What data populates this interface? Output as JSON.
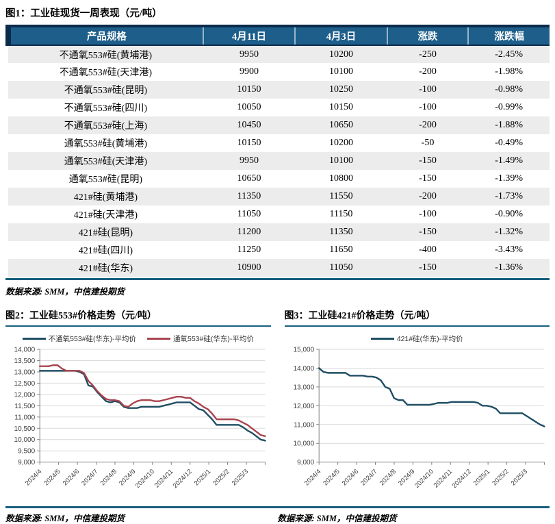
{
  "fig1": {
    "title": "图1：工业硅现货一周表现（元/吨）",
    "table": {
      "headers": [
        "产品规格",
        "4月11日",
        "4月3日",
        "涨跌",
        "涨跌幅"
      ],
      "rows": [
        [
          "不通氧553#硅(黄埔港)",
          "9950",
          "10200",
          "-250",
          "-2.45%"
        ],
        [
          "不通氧553#硅(天津港)",
          "9900",
          "10100",
          "-200",
          "-1.98%"
        ],
        [
          "不通氧553#硅(昆明)",
          "10150",
          "10250",
          "-100",
          "-0.98%"
        ],
        [
          "不通氧553#硅(四川)",
          "10050",
          "10150",
          "-100",
          "-0.99%"
        ],
        [
          "不通氧553#硅(上海)",
          "10450",
          "10650",
          "-200",
          "-1.88%"
        ],
        [
          "通氧553#硅(黄埔港)",
          "10150",
          "10200",
          "-50",
          "-0.49%"
        ],
        [
          "通氧553#硅(天津港)",
          "9950",
          "10100",
          "-150",
          "-1.49%"
        ],
        [
          "通氧553#硅(昆明)",
          "10650",
          "10800",
          "-150",
          "-1.39%"
        ],
        [
          "421#硅(黄埔港)",
          "11350",
          "11550",
          "-200",
          "-1.73%"
        ],
        [
          "421#硅(天津港)",
          "11050",
          "11150",
          "-100",
          "-0.90%"
        ],
        [
          "421#硅(昆明)",
          "11200",
          "11350",
          "-150",
          "-1.32%"
        ],
        [
          "421#硅(四川)",
          "11250",
          "11650",
          "-400",
          "-3.43%"
        ],
        [
          "421#硅(华东)",
          "10900",
          "11050",
          "-150",
          "-1.36%"
        ]
      ]
    },
    "source": "数据来源: SMM，中信建投期货"
  },
  "fig2": {
    "title": "图2：工业硅553#价格走势（元/吨）",
    "source": "数据来源: SMM，中信建投期货"
  },
  "fig3": {
    "title": "图3：工业硅421#价格走势（元/吨）",
    "source": "数据来源: SMM，中信建投期货"
  },
  "colors": {
    "table_header_bg": "#1D5E8A",
    "table_header_border": "#0B2B4A",
    "row_alt": "#ECECEC",
    "rule_teal": "#175E7E",
    "line_blue": "#1F4E63",
    "line_red": "#A8444F",
    "grid": "#D9D9D9",
    "axis": "#808080"
  },
  "chart_data": [
    {
      "type": "line",
      "title": "图2：工业硅553#价格走势（元/吨）",
      "ylabel": "",
      "xlabel": "",
      "ylim": [
        9000,
        14000
      ],
      "yticks": [
        9000,
        9500,
        10000,
        10500,
        11000,
        11500,
        12000,
        12500,
        13000,
        13500,
        14000
      ],
      "x_tick_labels": [
        "2024/4",
        "2024/5",
        "2024/6",
        "2024/7",
        "2024/8",
        "2024/9",
        "2024/10",
        "2024/11",
        "2024/12",
        "2025/1",
        "2025/2",
        "2025/3"
      ],
      "grid": true,
      "legend_position": "top",
      "series": [
        {
          "name": "不通氧553#硅(华东)-平均价",
          "color": "#1F4E63",
          "values": [
            13050,
            13050,
            13050,
            13050,
            13050,
            13050,
            13050,
            13050,
            13050,
            13000,
            12900,
            12400,
            12350,
            12100,
            11900,
            11700,
            11650,
            11700,
            11650,
            11450,
            11400,
            11400,
            11400,
            11450,
            11450,
            11450,
            11450,
            11450,
            11500,
            11550,
            11600,
            11650,
            11650,
            11650,
            11650,
            11500,
            11350,
            11300,
            11100,
            10900,
            10650,
            10650,
            10650,
            10650,
            10650,
            10650,
            10550,
            10400,
            10300,
            10150,
            10000,
            9950
          ]
        },
        {
          "name": "通氧553#硅(华东)-平均价",
          "color": "#A8444F",
          "values": [
            13250,
            13250,
            13250,
            13300,
            13300,
            13150,
            13050,
            13050,
            13050,
            13050,
            12950,
            12600,
            12400,
            12150,
            11950,
            11800,
            11750,
            11750,
            11700,
            11500,
            11450,
            11600,
            11700,
            11750,
            11750,
            11750,
            11700,
            11700,
            11750,
            11800,
            11850,
            11900,
            11900,
            11850,
            11850,
            11700,
            11600,
            11450,
            11350,
            11150,
            10900,
            10900,
            10900,
            10900,
            10900,
            10850,
            10750,
            10650,
            10500,
            10350,
            10200,
            10150
          ]
        }
      ]
    },
    {
      "type": "line",
      "title": "图3：工业硅421#价格走势（元/吨）",
      "ylabel": "",
      "xlabel": "",
      "ylim": [
        9000,
        15000
      ],
      "yticks": [
        9000,
        10000,
        11000,
        12000,
        13000,
        14000,
        15000
      ],
      "x_tick_labels": [
        "2024/4",
        "2024/5",
        "2024/6",
        "2024/7",
        "2024/8",
        "2024/9",
        "2024/10",
        "2024/11",
        "2024/12",
        "2025/1",
        "2025/2",
        "2025/3"
      ],
      "grid": true,
      "legend_position": "top",
      "series": [
        {
          "name": "421#硅(华东)-平均价",
          "color": "#1F4E63",
          "values": [
            14000,
            13800,
            13750,
            13750,
            13750,
            13750,
            13750,
            13600,
            13600,
            13600,
            13600,
            13550,
            13550,
            13500,
            13350,
            13000,
            12900,
            12400,
            12300,
            12300,
            12050,
            12050,
            12050,
            12050,
            12050,
            12050,
            12100,
            12150,
            12150,
            12150,
            12200,
            12200,
            12200,
            12200,
            12200,
            12200,
            12150,
            12000,
            12000,
            11950,
            11850,
            11600,
            11600,
            11600,
            11600,
            11600,
            11600,
            11450,
            11300,
            11150,
            11000,
            10900
          ]
        }
      ]
    }
  ]
}
